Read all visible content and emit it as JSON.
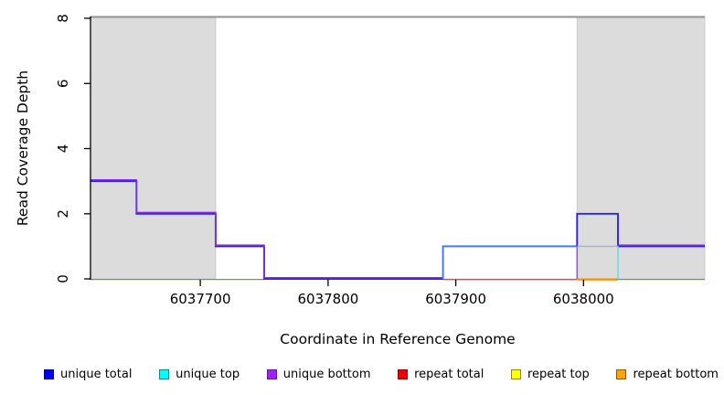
{
  "figure": {
    "x_axis_title": "Coordinate in Reference Genome",
    "y_axis_title": "Read Coverage Depth"
  },
  "axes": {
    "x": {
      "ticks": [
        6037700,
        6037800,
        6037900,
        6038000
      ]
    },
    "y": {
      "ticks": [
        0,
        2,
        4,
        6,
        8
      ]
    }
  },
  "legend": {
    "items": [
      {
        "label": "unique total",
        "fill": "#0000f0",
        "border": "#000090"
      },
      {
        "label": "unique top",
        "fill": "#00ffff",
        "border": "#008b8b"
      },
      {
        "label": "unique bottom",
        "fill": "#a020f0",
        "border": "#6a11a6"
      },
      {
        "label": "repeat total",
        "fill": "#ee0000",
        "border": "#8b0000"
      },
      {
        "label": "repeat top",
        "fill": "#ffff00",
        "border": "#8b8b00"
      },
      {
        "label": "repeat bottom",
        "fill": "#ffa500",
        "border": "#8b5a00"
      }
    ]
  },
  "chart_data": {
    "type": "line",
    "step": true,
    "title": "",
    "xlabel": "Coordinate in Reference Genome",
    "ylabel": "Read Coverage Depth",
    "xlim": [
      6037614,
      6038095
    ],
    "ylim": [
      0,
      8
    ],
    "grid": false,
    "legend_position": "bottom",
    "shaded_regions": [
      {
        "from": 6037614,
        "to": 6037712,
        "color": "#dcdcdc"
      },
      {
        "from": 6037995,
        "to": 6038095,
        "color": "#dcdcdc"
      }
    ],
    "series": [
      {
        "name": "unique total",
        "color": "#0000f0",
        "step_points": [
          [
            6037614,
            3
          ],
          [
            6037650,
            2
          ],
          [
            6037712,
            1
          ],
          [
            6037750,
            0
          ],
          [
            6037890,
            1
          ],
          [
            6037995,
            2
          ],
          [
            6038027,
            1
          ],
          [
            6038095,
            1
          ]
        ]
      },
      {
        "name": "unique top",
        "color": "#00ffff",
        "step_points": [
          [
            6037614,
            0
          ],
          [
            6037890,
            1
          ],
          [
            6038027,
            0
          ],
          [
            6038095,
            0
          ]
        ]
      },
      {
        "name": "unique bottom",
        "color": "#a020f0",
        "step_points": [
          [
            6037614,
            3
          ],
          [
            6037650,
            2
          ],
          [
            6037712,
            1
          ],
          [
            6037750,
            0
          ],
          [
            6037995,
            1
          ],
          [
            6038095,
            1
          ]
        ]
      },
      {
        "name": "repeat total",
        "color": "#ee0000",
        "step_points": [
          [
            6037614,
            0
          ],
          [
            6038095,
            0
          ]
        ]
      },
      {
        "name": "repeat top",
        "color": "#ffff00",
        "step_points": [
          [
            6037614,
            0
          ],
          [
            6038095,
            0
          ]
        ]
      },
      {
        "name": "repeat bottom",
        "color": "#ffa500",
        "step_points": [
          [
            6037614,
            0
          ],
          [
            6038095,
            0
          ]
        ]
      }
    ],
    "render": {
      "top_line": {
        "depth": 8,
        "color": "#919191",
        "width": 2
      },
      "lines": [
        {
          "name": "baseline-green-left",
          "color": "#4fae54",
          "width": 1.3,
          "dy": 0.6,
          "pts": [
            [
              6037614,
              0
            ],
            [
              6037750,
              0
            ]
          ]
        },
        {
          "name": "baseline-repeat-red",
          "color": "#cf4a68",
          "width": 1.5,
          "dy": 0.6,
          "pts": [
            [
              6037890,
              0
            ],
            [
              6037995,
              0
            ]
          ]
        },
        {
          "name": "baseline-repeat-orange",
          "color": "#ff8c00",
          "width": 2.2,
          "dy": 0.6,
          "pts": [
            [
              6037995,
              0
            ],
            [
              6038027,
              0
            ]
          ]
        },
        {
          "name": "baseline-green-right",
          "color": "#4fae54",
          "width": 1.3,
          "dy": 0.6,
          "pts": [
            [
              6038027,
              0
            ],
            [
              6038095,
              0
            ]
          ]
        },
        {
          "name": "unique-total-left-step",
          "color": "#2a22e8",
          "width": 1.9,
          "dy": 0,
          "pts": [
            [
              6037614,
              3
            ],
            [
              6037650,
              3
            ],
            [
              6037650,
              2
            ],
            [
              6037712,
              2
            ],
            [
              6037712,
              1
            ],
            [
              6037750,
              1
            ],
            [
              6037750,
              0
            ],
            [
              6037890,
              0
            ]
          ]
        },
        {
          "name": "unique-bottom-left-step",
          "color": "#8a2be2",
          "width": 1.5,
          "dy": -1.3,
          "pts": [
            [
              6037614,
              3
            ],
            [
              6037650,
              3
            ],
            [
              6037650,
              2
            ],
            [
              6037712,
              2
            ],
            [
              6037712,
              1
            ],
            [
              6037750,
              1
            ],
            [
              6037750,
              0
            ],
            [
              6037890,
              0
            ]
          ]
        },
        {
          "name": "unique-top-over-total-step",
          "color": "#3d7ef8",
          "width": 2.0,
          "dy": 0,
          "pts": [
            [
              6037890,
              0
            ],
            [
              6037890,
              1
            ],
            [
              6037995,
              1
            ]
          ]
        },
        {
          "name": "unique-total-peak-step",
          "color": "#2a22e8",
          "width": 1.9,
          "dy": 0,
          "pts": [
            [
              6037995,
              1
            ],
            [
              6037995,
              2
            ],
            [
              6038027,
              2
            ],
            [
              6038027,
              1
            ],
            [
              6038095,
              1
            ]
          ]
        },
        {
          "name": "unique-bottom-rise",
          "color": "#9a4ce0",
          "width": 1.5,
          "dy": 0,
          "pts": [
            [
              6037995,
              0
            ],
            [
              6037995,
              1
            ]
          ]
        },
        {
          "name": "unique-top-bottom-overlap",
          "color": "#aaa6ee",
          "width": 1.4,
          "dy": 0,
          "pts": [
            [
              6037995,
              1
            ],
            [
              6038027,
              1
            ]
          ]
        },
        {
          "name": "unique-top-fall",
          "color": "#5cdfe6",
          "width": 1.5,
          "dy": 0,
          "pts": [
            [
              6038027,
              1
            ],
            [
              6038027,
              0
            ]
          ]
        },
        {
          "name": "unique-bottom-right",
          "color": "#8a2be2",
          "width": 1.5,
          "dy": -1.3,
          "pts": [
            [
              6038027,
              1
            ],
            [
              6038095,
              1
            ]
          ]
        }
      ]
    }
  }
}
